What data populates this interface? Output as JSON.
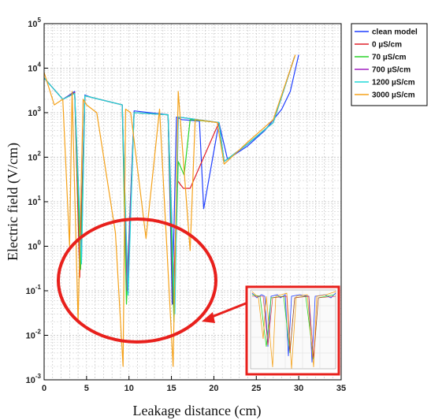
{
  "chart_data": {
    "type": "line",
    "xlabel": "Leakage distance (cm)",
    "ylabel": "Electric field (V/cm)",
    "xlim": [
      0,
      35
    ],
    "ylim": [
      0.001,
      100000
    ],
    "yscale": "log",
    "grid": true,
    "legend_position": "top-right outside",
    "x_ticks": [
      "0",
      "5",
      "10",
      "15",
      "20",
      "25",
      "30",
      "35"
    ],
    "y_ticks": [
      {
        "base": "10",
        "exp": "-3"
      },
      {
        "base": "10",
        "exp": "-2"
      },
      {
        "base": "10",
        "exp": "-1"
      },
      {
        "base": "10",
        "exp": "0"
      },
      {
        "base": "10",
        "exp": "1"
      },
      {
        "base": "10",
        "exp": "2"
      },
      {
        "base": "10",
        "exp": "3"
      },
      {
        "base": "10",
        "exp": "4"
      },
      {
        "base": "10",
        "exp": "5"
      }
    ],
    "annotation": "inset zoom with red ellipse highlighting field minima",
    "series": [
      {
        "name": "clean model",
        "color": "#1f3fff",
        "x": [
          0,
          2.2,
          3,
          3.6,
          4.2,
          4.8,
          5.6,
          9.2,
          9.8,
          10.6,
          14.6,
          15.1,
          15.6,
          16.2,
          18.3,
          18.8,
          20.6,
          21.6,
          24,
          26,
          28,
          29,
          30
        ],
        "y": [
          6000,
          2000,
          2500,
          3000,
          0.3,
          2500,
          2200,
          1500,
          0.2,
          1100,
          900,
          0.05,
          800,
          700,
          650,
          7,
          600,
          90,
          180,
          400,
          1200,
          3000,
          20000
        ]
      },
      {
        "name": "0 µS/cm",
        "color": "#e0202a",
        "x": [
          0,
          2.2,
          3.6,
          4.2,
          4.8,
          9.2,
          9.5,
          9.8,
          10.6,
          14.6,
          15.2,
          15.7,
          16.4,
          17.2,
          20.6,
          21.2,
          24,
          27,
          29.5
        ],
        "y": [
          6000,
          2000,
          2800,
          0.2,
          2400,
          1500,
          8,
          0.1,
          1000,
          900,
          0.05,
          30,
          20,
          20,
          600,
          80,
          200,
          600,
          18000
        ]
      },
      {
        "name": "70 µS/cm",
        "color": "#2ad42a",
        "x": [
          0,
          2.2,
          3.6,
          4.3,
          4.8,
          9.2,
          9.7,
          10.6,
          14.6,
          15.3,
          15.8,
          16.5,
          17.2,
          20.6,
          21.2,
          24,
          27,
          29.5
        ],
        "y": [
          6000,
          2000,
          2700,
          0.3,
          2400,
          1500,
          0.05,
          1000,
          900,
          0.02,
          80,
          40,
          700,
          600,
          80,
          200,
          600,
          18000
        ]
      },
      {
        "name": "700 µS/cm",
        "color": "#a020c0",
        "x": [
          0,
          2.2,
          3.6,
          4.4,
          4.8,
          9.2,
          9.8,
          10.6,
          14.6,
          15.4,
          15.8,
          20.6,
          21.2,
          24,
          27,
          29.5
        ],
        "y": [
          6000,
          2000,
          2700,
          0.5,
          2400,
          1500,
          0.1,
          1000,
          900,
          0.05,
          800,
          600,
          80,
          200,
          600,
          18000
        ]
      },
      {
        "name": "1200 µS/cm",
        "color": "#20d8d8",
        "x": [
          0,
          2.2,
          3.6,
          4.4,
          4.8,
          9.2,
          9.9,
          10.6,
          14.6,
          15.4,
          15.8,
          20.6,
          21.2,
          24,
          27,
          29.5
        ],
        "y": [
          6000,
          2000,
          2700,
          0.4,
          2400,
          1500,
          0.08,
          1000,
          900,
          0.03,
          800,
          600,
          80,
          200,
          600,
          18000
        ]
      },
      {
        "name": "3000 µS/cm",
        "color": "#f5a21a",
        "x": [
          0,
          1.2,
          2.2,
          3.0,
          3.3,
          4.0,
          4.6,
          5.0,
          6.2,
          8.4,
          9.3,
          9.6,
          10.2,
          12.0,
          13.6,
          15.2,
          15.8,
          17.2,
          17.8,
          20.4,
          21.2,
          24,
          27,
          29.6
        ],
        "y": [
          8000,
          1500,
          2000,
          1.0,
          3000,
          0.02,
          2000,
          1500,
          1000,
          2.0,
          0.002,
          1200,
          1000,
          1.5,
          1200,
          0.002,
          3000,
          0.8,
          700,
          600,
          70,
          220,
          700,
          20000
        ]
      }
    ]
  }
}
